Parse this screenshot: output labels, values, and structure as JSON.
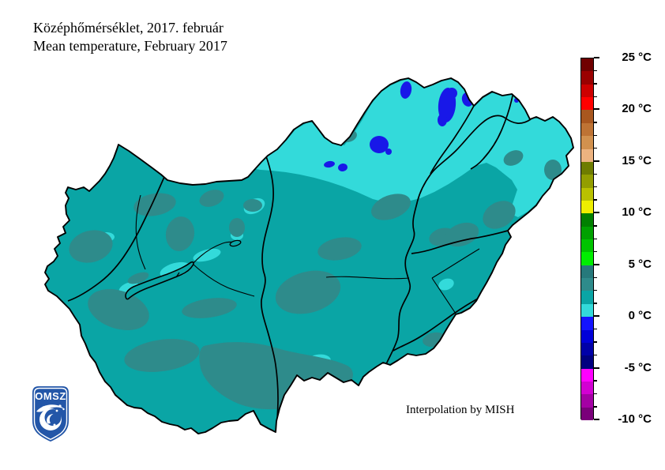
{
  "title": {
    "line1_hu": "Középhőmérséklet, 2017. február",
    "line2_en": "Mean temperature, February 2017"
  },
  "annotation": "Interpolation by MISH",
  "logo": {
    "text": "OMSZ"
  },
  "colors": {
    "map_main": "#0AA5A5",
    "map_dark": "#2E8B8B",
    "map_light": "#33DADA",
    "map_blue": "#1818E8",
    "line": "#000000",
    "logo_blue": "#2356A8"
  },
  "scale": {
    "unit": "°C",
    "max": 25,
    "min": -10,
    "degrees_per_segment": 1.25,
    "tick_labels": [
      "25 °C",
      "20 °C",
      "15 °C",
      "10 °C",
      "5 °C",
      "0 °C",
      "-5 °C",
      "-10 °C"
    ],
    "tick_values": [
      25,
      20,
      15,
      10,
      5,
      0,
      -5,
      -10
    ],
    "segment_colors_top_to_bottom": [
      "#700000",
      "#9A0000",
      "#CD0000",
      "#FF0000",
      "#A9571F",
      "#BE7334",
      "#D2914E",
      "#EDB380",
      "#6E7C00",
      "#939E00",
      "#B9C100",
      "#EEEE00",
      "#008000",
      "#00A100",
      "#00C400",
      "#00EE00",
      "#26797B",
      "#2E8B8B",
      "#0AA5A5",
      "#33DADA",
      "#1414FF",
      "#0000D8",
      "#0000A8",
      "#000080",
      "#FF00FF",
      "#D200D2",
      "#A400A4",
      "#7A007A"
    ]
  },
  "map_legend_reading": {
    "dominant_range_c": "0 to 5",
    "light_cyan_range_c": "0 to 1.25",
    "dark_teal_range_c": "2.5 to 3.75",
    "blue_spots_range_c": "below 0"
  }
}
